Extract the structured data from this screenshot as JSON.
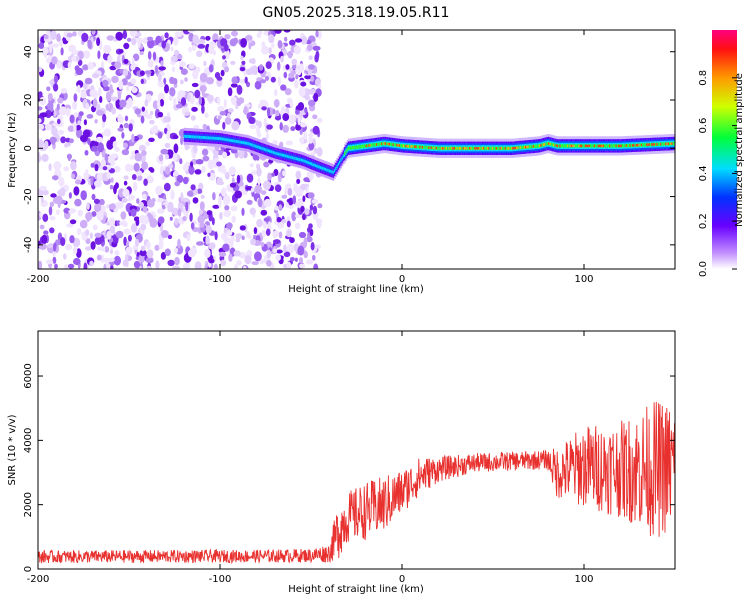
{
  "title": "GN05.2025.318.19.05.R11",
  "chart_data": [
    {
      "type": "heatmap",
      "xlabel": "Height of straight line (km)",
      "ylabel": "Frequency (Hz)",
      "xlim": [
        -200,
        150
      ],
      "ylim": [
        -50,
        49
      ],
      "xticks": [
        -200,
        -100,
        0,
        100
      ],
      "xtick_labels": [
        "-200",
        "-100",
        "0",
        "100"
      ],
      "yticks": [
        -40,
        -20,
        0,
        20,
        40
      ],
      "ytick_labels": [
        "-40",
        "-20",
        "0",
        "20",
        "40"
      ],
      "colorbar": {
        "label": "Normalized spectral amplitude",
        "range": [
          0,
          1
        ],
        "ticks": [
          0,
          0.2,
          0.4,
          0.6,
          0.8
        ],
        "tick_labels": [
          "0.0",
          "0.2",
          "0.4",
          "0.6",
          "0.8"
        ]
      },
      "ridge": {
        "x": [
          -120,
          -100,
          -85,
          -70,
          -55,
          -45,
          -38,
          -30,
          -20,
          -10,
          0,
          20,
          40,
          60,
          75,
          80,
          85,
          100,
          120,
          150
        ],
        "y": [
          5,
          4,
          2,
          -2,
          -5,
          -8,
          -10,
          0,
          1,
          2,
          1,
          0,
          0,
          0,
          1,
          2,
          1,
          1,
          1,
          2
        ]
      },
      "noise_region_x": [
        -200,
        -45
      ]
    },
    {
      "type": "line",
      "xlabel": "Height of straight line (km)",
      "ylabel": "SNR (10 * v/v)",
      "xlim": [
        -200,
        150
      ],
      "ylim": [
        0,
        7400
      ],
      "xticks": [
        -200,
        -100,
        0,
        100
      ],
      "xtick_labels": [
        "-200",
        "-100",
        "0",
        "100"
      ],
      "yticks": [
        0,
        2000,
        4000,
        6000
      ],
      "ytick_labels": [
        "0",
        "2000",
        "4000",
        "6000"
      ],
      "series": [
        {
          "name": "SNR",
          "color": "#e8302e",
          "envelope_x": [
            -200,
            -140,
            -80,
            -50,
            -40,
            -35,
            -30,
            -20,
            -10,
            0,
            10,
            20,
            40,
            60,
            80,
            85,
            100,
            120,
            140,
            150
          ],
          "envelope_mean": [
            380,
            390,
            400,
            420,
            500,
            1200,
            1600,
            1800,
            2000,
            2400,
            2900,
            3100,
            3300,
            3350,
            3400,
            3000,
            3200,
            3100,
            3100,
            3200
          ],
          "envelope_amp": [
            200,
            200,
            200,
            220,
            300,
            900,
            800,
            900,
            900,
            700,
            600,
            400,
            300,
            300,
            300,
            800,
            1300,
            1500,
            2200,
            2000
          ]
        }
      ]
    }
  ]
}
